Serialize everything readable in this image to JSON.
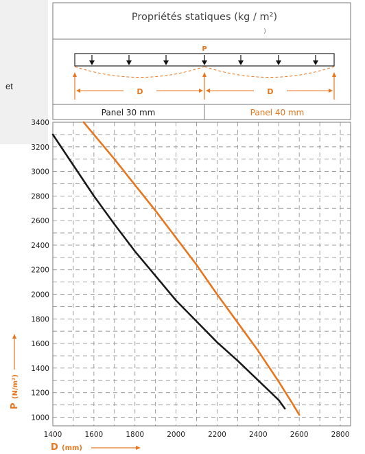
{
  "side_panel": {
    "text": "et"
  },
  "header": {
    "title": "Propriétés statiques (kg / m²)",
    "mark": ")"
  },
  "diagram": {
    "load_label": "P",
    "span_label_1": "D",
    "span_label_2": "D"
  },
  "legend": {
    "label_30": "Panel 30 mm",
    "label_40": "Panel 40 mm"
  },
  "colors": {
    "series_30": "#1a1a1a",
    "series_40": "#e8761e",
    "accent": "#e8761e",
    "frame": "#777777",
    "grid": "#888888"
  },
  "chart_data": {
    "type": "line",
    "xlabel_symbol": "D",
    "xlabel_unit": "(mm)",
    "ylabel_symbol": "P",
    "ylabel_unit": "(N/m²)",
    "xlim": [
      1400,
      2850
    ],
    "ylim": [
      930,
      3400
    ],
    "x_ticks": [
      1400,
      1600,
      1800,
      2000,
      2200,
      2400,
      2600,
      2800
    ],
    "y_ticks": [
      1000,
      1200,
      1400,
      1600,
      1800,
      2000,
      2200,
      2400,
      2600,
      2800,
      3000,
      3200,
      3400
    ],
    "grid": true,
    "series": [
      {
        "name": "Panel 30 mm",
        "color": "#1a1a1a",
        "points": [
          [
            1400,
            3300
          ],
          [
            1500,
            3050
          ],
          [
            1600,
            2800
          ],
          [
            1700,
            2570
          ],
          [
            1800,
            2350
          ],
          [
            1900,
            2150
          ],
          [
            2000,
            1950
          ],
          [
            2100,
            1780
          ],
          [
            2200,
            1610
          ],
          [
            2300,
            1460
          ],
          [
            2400,
            1300
          ],
          [
            2500,
            1140
          ],
          [
            2530,
            1070
          ]
        ]
      },
      {
        "name": "Panel 40 mm",
        "color": "#e8761e",
        "points": [
          [
            1550,
            3400
          ],
          [
            1600,
            3300
          ],
          [
            1700,
            3100
          ],
          [
            1800,
            2890
          ],
          [
            1900,
            2680
          ],
          [
            2000,
            2460
          ],
          [
            2100,
            2240
          ],
          [
            2200,
            2000
          ],
          [
            2300,
            1770
          ],
          [
            2400,
            1540
          ],
          [
            2500,
            1290
          ],
          [
            2560,
            1130
          ],
          [
            2600,
            1020
          ]
        ]
      }
    ]
  }
}
